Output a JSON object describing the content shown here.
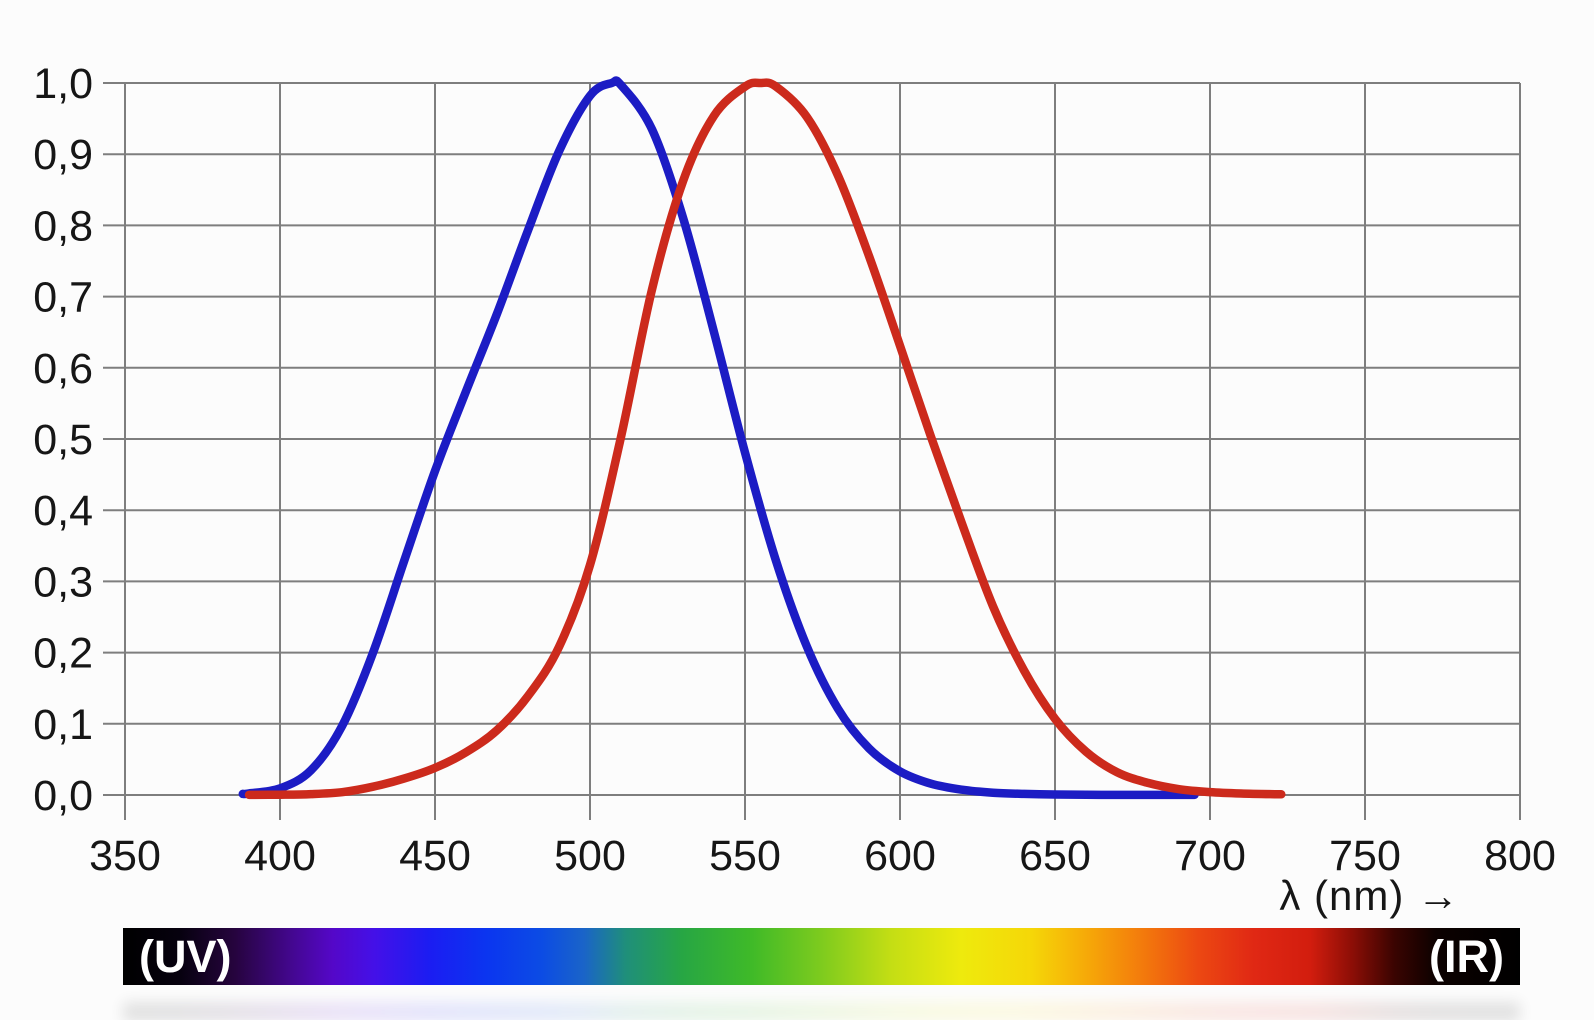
{
  "page": {
    "background": "#fcfcfc"
  },
  "spectrum_bar": {
    "uv_label": "(UV)",
    "ir_label": "(IR)",
    "gradient": [
      [
        0.0,
        "#000000"
      ],
      [
        0.04,
        "#06010e"
      ],
      [
        0.08,
        "#26043e"
      ],
      [
        0.12,
        "#43078e"
      ],
      [
        0.15,
        "#5407c8"
      ],
      [
        0.18,
        "#4410e8"
      ],
      [
        0.22,
        "#1b1df2"
      ],
      [
        0.26,
        "#0b35f0"
      ],
      [
        0.3,
        "#0c4ce4"
      ],
      [
        0.33,
        "#1a64c8"
      ],
      [
        0.36,
        "#1f8f7a"
      ],
      [
        0.4,
        "#27a644"
      ],
      [
        0.45,
        "#3fba28"
      ],
      [
        0.5,
        "#7ecb1e"
      ],
      [
        0.55,
        "#c4de14"
      ],
      [
        0.6,
        "#eeea0d"
      ],
      [
        0.65,
        "#f5d708"
      ],
      [
        0.69,
        "#f6a908"
      ],
      [
        0.73,
        "#f37a0c"
      ],
      [
        0.77,
        "#ec4812"
      ],
      [
        0.81,
        "#e02814"
      ],
      [
        0.85,
        "#d21d0e"
      ],
      [
        0.88,
        "#8c0e06"
      ],
      [
        0.91,
        "#3a0401"
      ],
      [
        0.94,
        "#0c0100"
      ],
      [
        1.0,
        "#000000"
      ]
    ]
  },
  "chart_data": {
    "type": "line",
    "title": "",
    "xlabel": "λ (nm) →",
    "ylabel": "",
    "xlim": [
      350,
      800
    ],
    "ylim": [
      0,
      1
    ],
    "grid": true,
    "legend": false,
    "grid_color": "#7e7e7e",
    "tick_label_color": "#161616",
    "x_tick_values": [
      350,
      400,
      450,
      500,
      550,
      600,
      650,
      700,
      750,
      800
    ],
    "x_tick_labels": [
      "350",
      "400",
      "450",
      "500",
      "550",
      "600",
      "650",
      "700",
      "750",
      "800"
    ],
    "y_tick_values": [
      0,
      0.1,
      0.2,
      0.3,
      0.4,
      0.5,
      0.6,
      0.7,
      0.8,
      0.9,
      1.0
    ],
    "y_tick_labels": [
      "0,0",
      "0,1",
      "0,2",
      "0,3",
      "0,4",
      "0,5",
      "0,6",
      "0,7",
      "0,8",
      "0,9",
      "1,0"
    ],
    "series": [
      {
        "name": "blue",
        "color": "#1c1cc4",
        "peak_nm": 507,
        "x": [
          388,
          390,
          400,
          410,
          420,
          430,
          440,
          450,
          460,
          470,
          480,
          490,
          500,
          507,
          510,
          520,
          530,
          540,
          550,
          560,
          570,
          580,
          590,
          600,
          610,
          620,
          630,
          640,
          650,
          660,
          670,
          680,
          695
        ],
        "y": [
          0.0015,
          0.0022,
          0.0093,
          0.0348,
          0.0966,
          0.1998,
          0.3281,
          0.455,
          0.567,
          0.676,
          0.793,
          0.904,
          0.982,
          1.0,
          0.997,
          0.935,
          0.811,
          0.65,
          0.481,
          0.329,
          0.208,
          0.121,
          0.0655,
          0.0332,
          0.0159,
          0.0074,
          0.0033,
          0.0015,
          0.0007,
          0.0003,
          0.0002,
          0.0001,
          0.0001
        ]
      },
      {
        "name": "red",
        "color": "#cc2a1c",
        "peak_nm": 555,
        "x": [
          390,
          400,
          410,
          420,
          430,
          440,
          450,
          460,
          470,
          480,
          490,
          500,
          510,
          520,
          530,
          540,
          550,
          555,
          560,
          570,
          580,
          590,
          600,
          610,
          620,
          630,
          640,
          650,
          660,
          670,
          680,
          690,
          700,
          710,
          723
        ],
        "y": [
          0.0001,
          0.0004,
          0.0012,
          0.004,
          0.0116,
          0.023,
          0.038,
          0.06,
          0.091,
          0.139,
          0.208,
          0.323,
          0.503,
          0.71,
          0.862,
          0.954,
          0.995,
          1.0,
          0.995,
          0.952,
          0.87,
          0.757,
          0.631,
          0.503,
          0.381,
          0.265,
          0.175,
          0.107,
          0.061,
          0.032,
          0.017,
          0.0082,
          0.0041,
          0.0021,
          0.001
        ]
      }
    ]
  }
}
